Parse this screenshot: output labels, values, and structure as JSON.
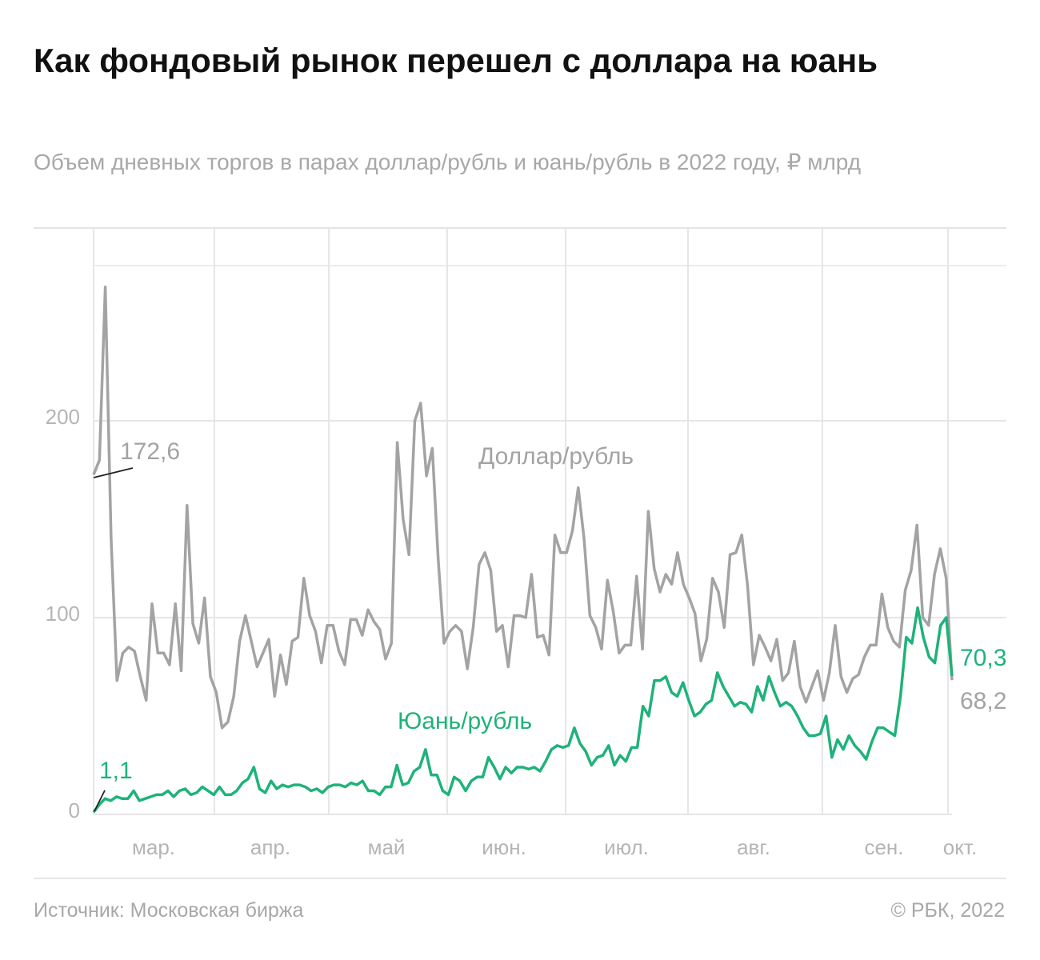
{
  "header": {
    "title": "Как фондовый рынок перешел с доллара на юань",
    "subtitle": "Объем дневных торгов в парах доллар/рубль и юань/рубль в 2022 году, ₽ млрд"
  },
  "footer": {
    "source": "Источник: Московская биржа",
    "copyright": "© РБК, 2022"
  },
  "chart_data": {
    "type": "line",
    "title": "",
    "xlabel": "",
    "ylabel": "",
    "ylim": [
      0,
      300
    ],
    "y_ticks": [
      "0",
      "100",
      "200"
    ],
    "y_tick_values": [
      0,
      100,
      200
    ],
    "x_ticks": [
      "мар.",
      "апр.",
      "май",
      "июн.",
      "июл.",
      "авг.",
      "сен.",
      "окт."
    ],
    "grid": true,
    "colors": {
      "dollar": "#a3a3a3",
      "yuan": "#1fb27a",
      "callout": "#222222"
    },
    "series": [
      {
        "name": "Доллар/рубль",
        "color": "#a3a3a3",
        "values": [
          172.6,
          180,
          268,
          140,
          68,
          82,
          85,
          83,
          70,
          58,
          107,
          82,
          82,
          76,
          107,
          73,
          157,
          97,
          87,
          110,
          70,
          62,
          44,
          47,
          60,
          88,
          101,
          88,
          75,
          82,
          89,
          60,
          81,
          66,
          88,
          90,
          120,
          101,
          93,
          77,
          96,
          96,
          83,
          76,
          99,
          99,
          91,
          104,
          98,
          94,
          79,
          87,
          189,
          150,
          132,
          200,
          209,
          172,
          186,
          130,
          87,
          93,
          96,
          93,
          74,
          95,
          127,
          133,
          124,
          93,
          96,
          75,
          101,
          101,
          100,
          122,
          90,
          91,
          81,
          142,
          133,
          133,
          144,
          166,
          140,
          101,
          95,
          84,
          119,
          103,
          82,
          86,
          86,
          121,
          84,
          154,
          125,
          113,
          122,
          117,
          133,
          117,
          110,
          102,
          78,
          89,
          120,
          113,
          95,
          132,
          133,
          142,
          116,
          76,
          91,
          85,
          78,
          89,
          68,
          72,
          88,
          65,
          57,
          65,
          73,
          58,
          72,
          96,
          70,
          62,
          69,
          71,
          80,
          86,
          86,
          112,
          95,
          88,
          85,
          114,
          124,
          147,
          100,
          96,
          122,
          135,
          120,
          68.2
        ],
        "first_label": "172,6",
        "last_label": "68,2"
      },
      {
        "name": "Юань/рубль",
        "color": "#1fb27a",
        "values": [
          1.1,
          5,
          8,
          7,
          9,
          8,
          8,
          12,
          7,
          8,
          9,
          10,
          10,
          12,
          9,
          12,
          13,
          10,
          11,
          14,
          12,
          10,
          14,
          10,
          10,
          12,
          16,
          18,
          24,
          13,
          11,
          17,
          13,
          15,
          14,
          15,
          15,
          14,
          12,
          13,
          11,
          14,
          15,
          15,
          14,
          16,
          15,
          17,
          12,
          12,
          10,
          14,
          14,
          25,
          15,
          16,
          22,
          24,
          33,
          20,
          20,
          12,
          10,
          19,
          17,
          12,
          17,
          19,
          19,
          29,
          24,
          18,
          24,
          21,
          24,
          24,
          23,
          24,
          22,
          27,
          33,
          35,
          34,
          35,
          44,
          36,
          32,
          25,
          29,
          30,
          35,
          25,
          30,
          27,
          34,
          34,
          55,
          50,
          68,
          68,
          70,
          62,
          60,
          67,
          58,
          50,
          52,
          56,
          58,
          72,
          65,
          60,
          55,
          57,
          56,
          52,
          65,
          58,
          70,
          62,
          55,
          57,
          55,
          50,
          44,
          40,
          40,
          41,
          50,
          29,
          38,
          33,
          40,
          35,
          32,
          28,
          37,
          44,
          44,
          42,
          40,
          60,
          90,
          87,
          105,
          90,
          80,
          77,
          96,
          100,
          70.3
        ],
        "first_label": "1,1",
        "last_label": "70,3"
      }
    ]
  }
}
